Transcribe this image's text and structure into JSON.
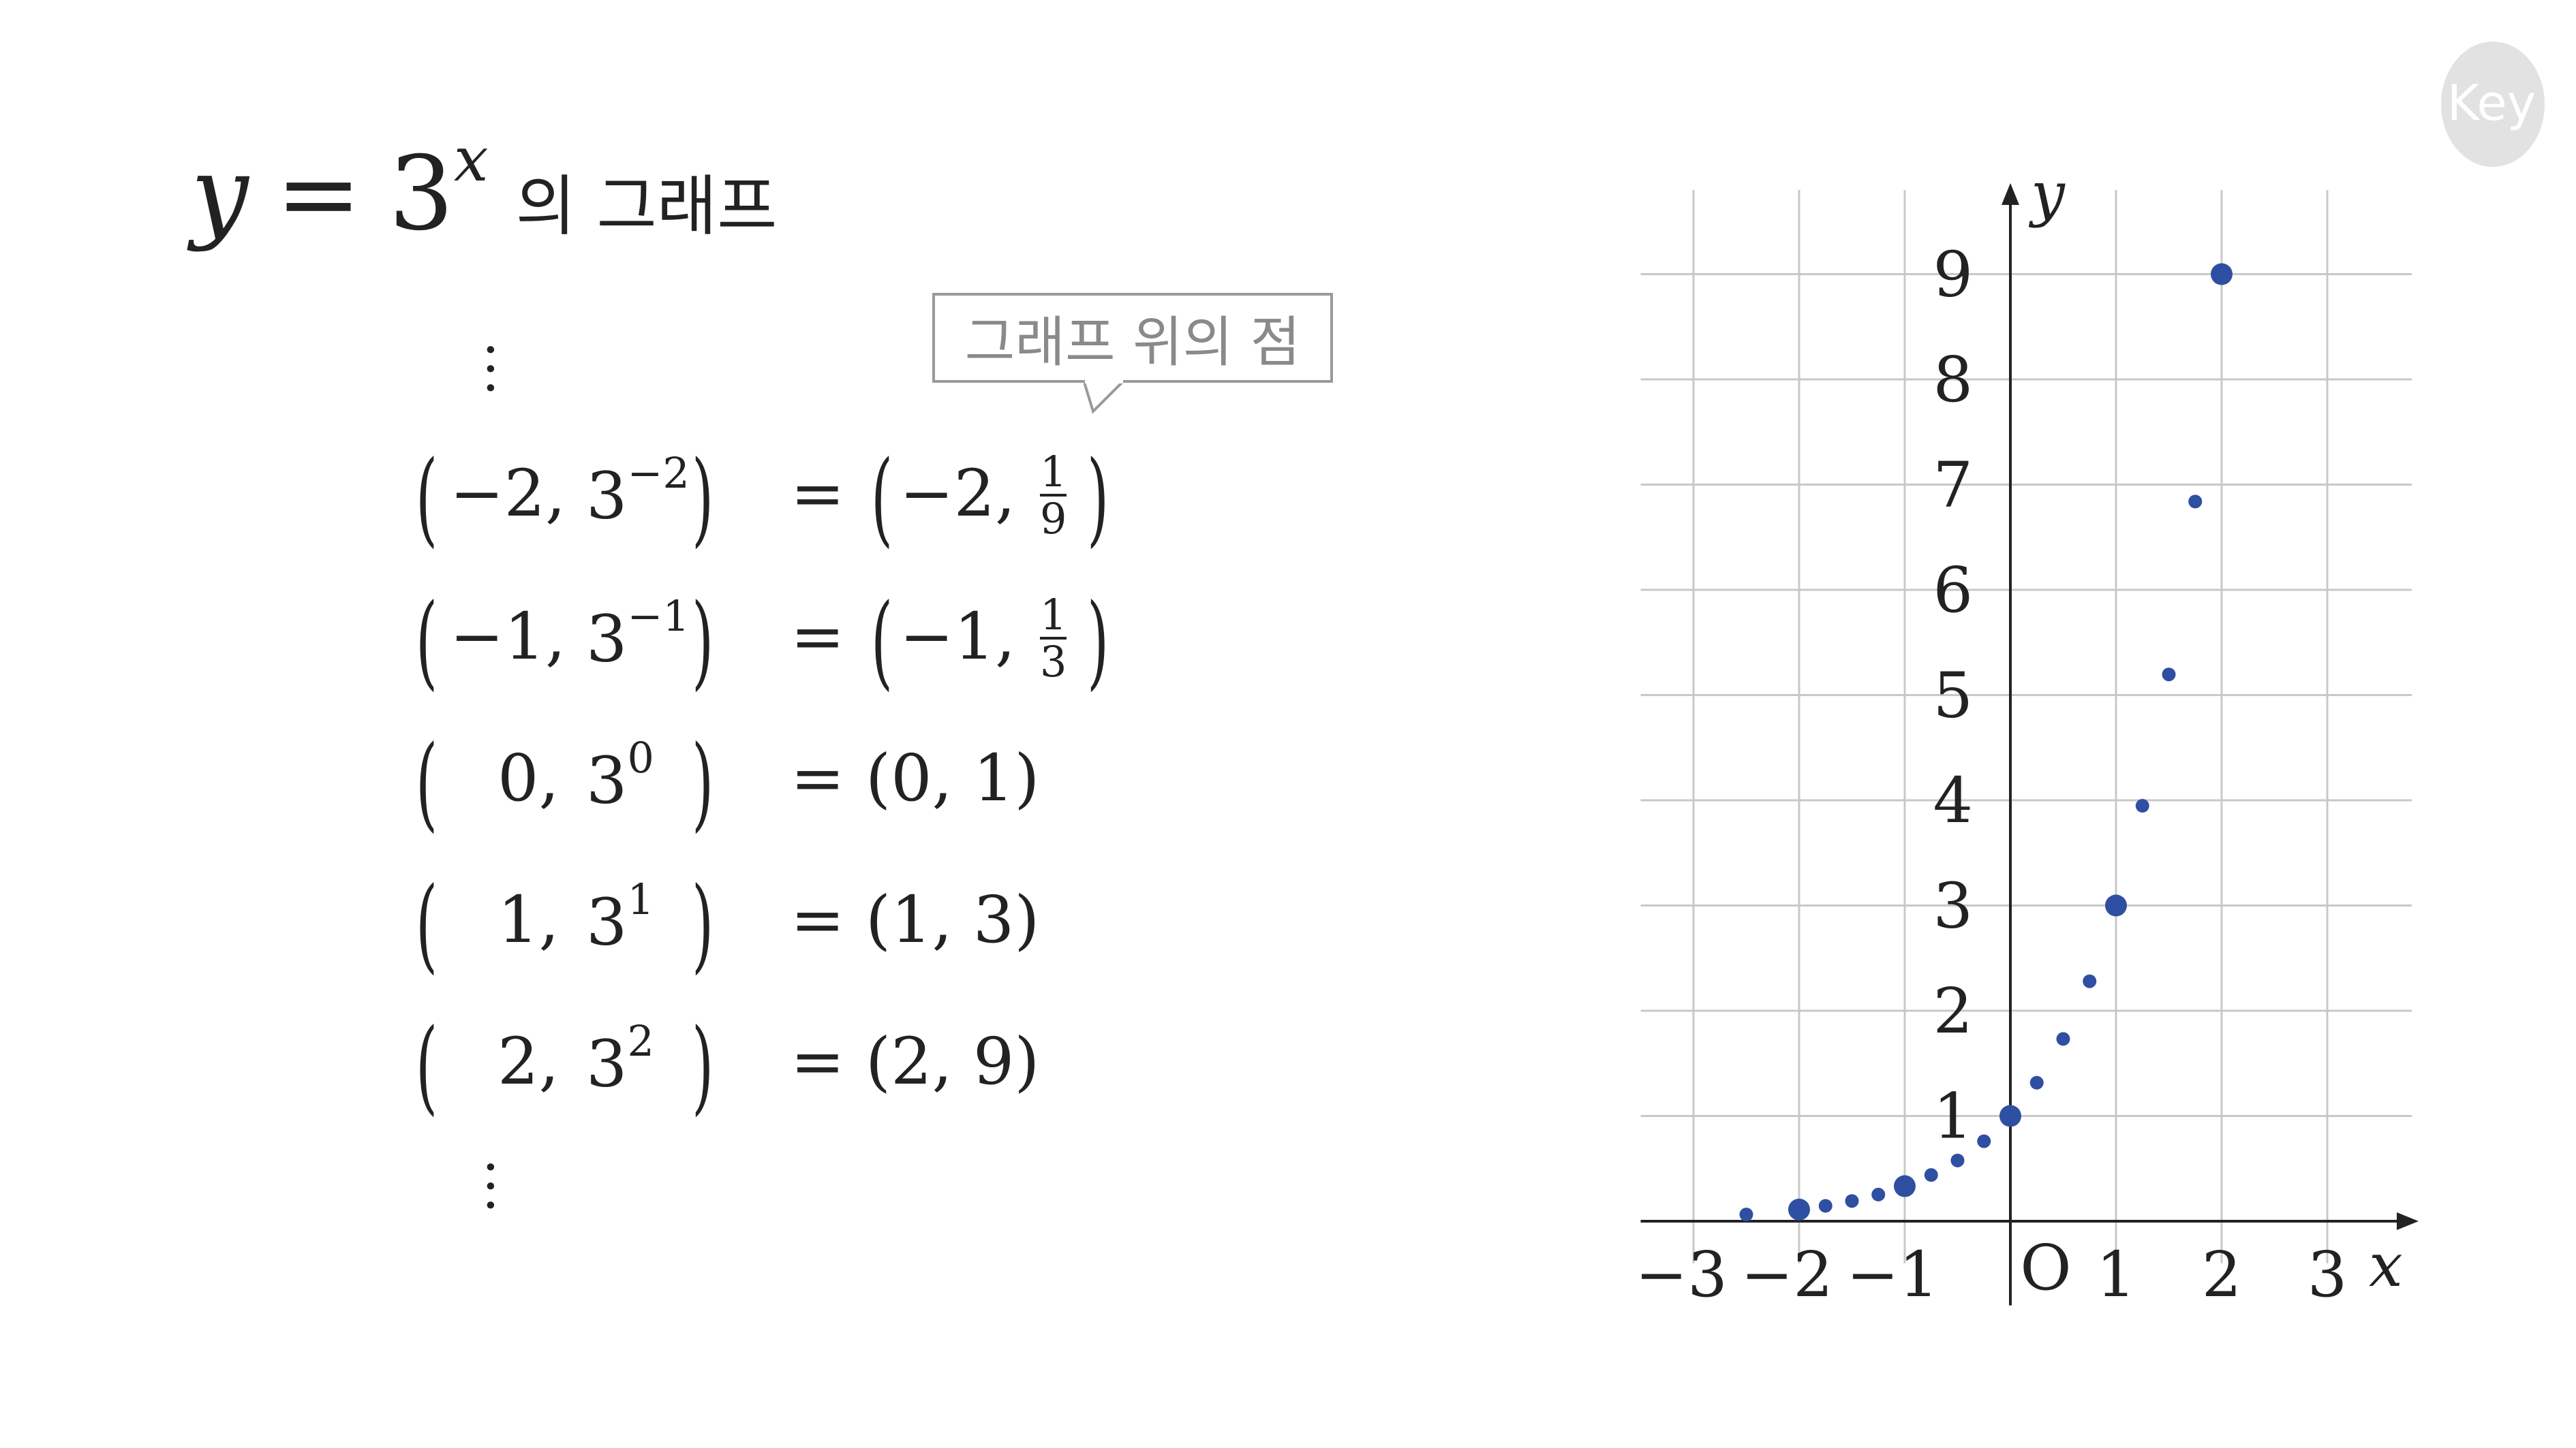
{
  "title": {
    "math_base": "3",
    "math_exp": "x",
    "math_var": "y",
    "math_eq": "=",
    "suffix_ko": "의 그래프"
  },
  "callout": {
    "text": "그래프 위의 점"
  },
  "points_list": {
    "rows": [
      {
        "x": "−2,",
        "power": "3",
        "exponent": "−2",
        "result_x": "−2,",
        "result_y_num": "1",
        "result_y_den": "9"
      },
      {
        "x": "−1,",
        "power": "3",
        "exponent": "−1",
        "result_x": "−1,",
        "result_y_num": "1",
        "result_y_den": "3"
      },
      {
        "x": "0,",
        "power": "3",
        "exponent": "0",
        "result": "(0,  1)"
      },
      {
        "x": "1,",
        "power": "3",
        "exponent": "1",
        "result": "(1,  3)"
      },
      {
        "x": "2,",
        "power": "3",
        "exponent": "2",
        "result": "(2,  9)"
      }
    ],
    "equals": "="
  },
  "logo": {
    "text": "Key"
  },
  "chart_data": {
    "type": "scatter",
    "x_ticks": [
      -3,
      -2,
      -1,
      1,
      2,
      3
    ],
    "y_ticks": [
      1,
      2,
      3,
      4,
      5,
      6,
      7,
      8,
      9
    ],
    "x_tick_labels": [
      "−3",
      "−2",
      "−1",
      "1",
      "2",
      "3"
    ],
    "y_tick_labels": [
      "1",
      "2",
      "3",
      "4",
      "5",
      "6",
      "7",
      "8",
      "9"
    ],
    "xlabel": "x",
    "ylabel": "y",
    "origin_label": "O",
    "xlim": [
      -3.5,
      3.8
    ],
    "ylim": [
      -0.8,
      9.8
    ],
    "grid": true,
    "series": [
      {
        "role": "highlight",
        "x": [
          -2,
          -1,
          0,
          1,
          2
        ],
        "y": [
          0.111,
          0.333,
          1,
          3,
          9
        ]
      },
      {
        "role": "sample",
        "x": [
          -2.5,
          -1.75,
          -1.5,
          -1.25,
          -0.75,
          -0.5,
          -0.25,
          0.25,
          0.5,
          0.75,
          1.25,
          1.5,
          1.75
        ],
        "y": [
          0.064,
          0.146,
          0.192,
          0.253,
          0.439,
          0.577,
          0.76,
          1.316,
          1.732,
          2.28,
          3.948,
          5.196,
          6.839
        ]
      }
    ],
    "colors": {
      "point": "#2f4fa2",
      "grid": "#c8c8c8",
      "axis": "#222222"
    }
  }
}
